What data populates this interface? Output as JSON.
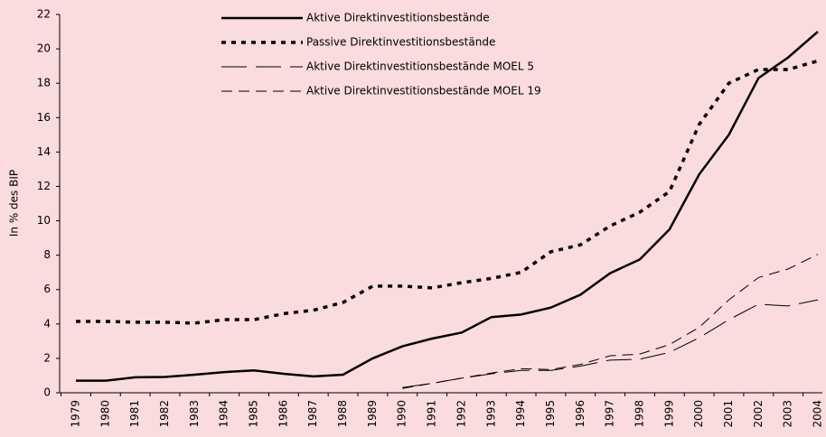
{
  "chart_data": {
    "type": "line",
    "y_label": "In % des BIP",
    "categories": [
      "1979",
      "1980",
      "1981",
      "1982",
      "1983",
      "1984",
      "1985",
      "1986",
      "1987",
      "1988",
      "1989",
      "1990",
      "1991",
      "1992",
      "1993",
      "1994",
      "1995",
      "1996",
      "1997",
      "1998",
      "1999",
      "2000",
      "2001",
      "2002",
      "2003",
      "2004"
    ],
    "series": [
      {
        "name": "Aktive Direktinvestitionsbestände",
        "color": "#000000",
        "line_style": "solid-bold",
        "values": [
          0.7,
          0.7,
          0.9,
          0.92,
          1.05,
          1.2,
          1.3,
          1.1,
          0.95,
          1.05,
          2.0,
          2.7,
          3.15,
          3.5,
          4.4,
          4.55,
          4.95,
          5.7,
          6.95,
          7.75,
          9.5,
          12.7,
          15.0,
          18.3,
          19.5,
          21.0
        ]
      },
      {
        "name": "Passive Direktinvestitionsbestände",
        "color": "#000000",
        "line_style": "dotted-bold",
        "values": [
          4.15,
          4.15,
          4.1,
          4.1,
          4.05,
          4.25,
          4.25,
          4.6,
          4.8,
          5.25,
          6.2,
          6.2,
          6.1,
          6.4,
          6.65,
          7.0,
          8.2,
          8.6,
          9.7,
          10.5,
          11.7,
          15.6,
          18.0,
          18.8,
          18.8,
          19.3
        ]
      },
      {
        "name": "Aktive Direktinvestitionsbestände MOEL 5",
        "color": "#000000",
        "line_style": "long-dash",
        "values": [
          null,
          null,
          null,
          null,
          null,
          null,
          null,
          null,
          null,
          null,
          null,
          0.3,
          0.55,
          0.85,
          1.1,
          1.3,
          1.3,
          1.55,
          1.9,
          1.95,
          2.35,
          3.2,
          4.25,
          5.15,
          5.05,
          5.4
        ]
      },
      {
        "name": "Aktive Direktinvestitionsbestände MOEL 19",
        "color": "#000000",
        "line_style": "dash",
        "values": [
          null,
          null,
          null,
          null,
          null,
          null,
          null,
          null,
          null,
          null,
          null,
          0.25,
          0.55,
          0.85,
          1.15,
          1.4,
          1.35,
          1.65,
          2.15,
          2.25,
          2.8,
          3.8,
          5.4,
          6.7,
          7.2,
          8.05
        ]
      }
    ],
    "ylim": [
      0,
      22
    ],
    "yticks": [
      0,
      2,
      4,
      6,
      8,
      10,
      12,
      14,
      16,
      18,
      20,
      22
    ],
    "grid": false,
    "legend": "upper center"
  }
}
